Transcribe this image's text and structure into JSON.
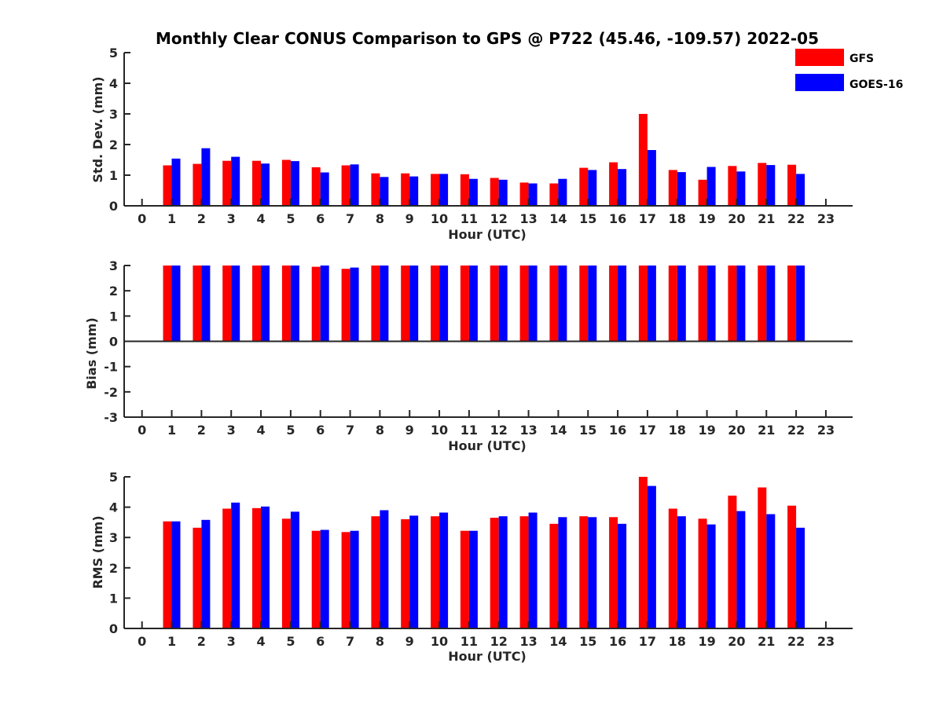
{
  "chart_data": {
    "title": "Monthly Clear CONUS Comparison to GPS @ P722 (45.46, -109.57) 2022-05",
    "legend": {
      "placement": "top-right",
      "entries": [
        {
          "name": "GFS",
          "color": "#ff0000"
        },
        {
          "name": "GOES-16",
          "color": "#0000ff"
        }
      ]
    },
    "panels": [
      {
        "id": "std",
        "type": "bar",
        "xlabel": "Hour (UTC)",
        "ylabel": "Std. Dev. (mm)",
        "xlim": [
          -0.6,
          23.9
        ],
        "ylim": [
          0,
          5
        ],
        "yticks": [
          0,
          1,
          2,
          3,
          4,
          5
        ],
        "xticks": [
          "0",
          "1",
          "2",
          "3",
          "4",
          "5",
          "6",
          "7",
          "8",
          "9",
          "10",
          "11",
          "12",
          "13",
          "14",
          "15",
          "16",
          "17",
          "18",
          "19",
          "20",
          "21",
          "22",
          "23"
        ],
        "hours": [
          1,
          2,
          3,
          4,
          5,
          6,
          7,
          8,
          9,
          10,
          11,
          12,
          13,
          14,
          15,
          16,
          17,
          18,
          19,
          20,
          21,
          22
        ],
        "series": [
          {
            "name": "GFS",
            "color": "#ff0000",
            "values": [
              1.32,
              1.37,
              1.47,
              1.47,
              1.5,
              1.26,
              1.32,
              1.06,
              1.06,
              1.04,
              1.03,
              0.91,
              0.76,
              0.73,
              1.24,
              1.42,
              3.0,
              1.17,
              0.85,
              1.3,
              1.4,
              1.34
            ]
          },
          {
            "name": "GOES-16",
            "color": "#0000ff",
            "values": [
              1.54,
              1.88,
              1.6,
              1.38,
              1.46,
              1.09,
              1.35,
              0.94,
              0.96,
              1.04,
              0.88,
              0.85,
              0.73,
              0.88,
              1.17,
              1.2,
              1.82,
              1.1,
              1.27,
              1.12,
              1.33,
              1.04
            ]
          }
        ]
      },
      {
        "id": "bias",
        "type": "bar",
        "xlabel": "Hour (UTC)",
        "ylabel": "Bias (mm)",
        "xlim": [
          -0.6,
          23.9
        ],
        "ylim": [
          -3,
          3
        ],
        "yticks": [
          -3,
          -2,
          -1,
          0,
          1,
          2,
          3
        ],
        "xticks": [
          "0",
          "1",
          "2",
          "3",
          "4",
          "5",
          "6",
          "7",
          "8",
          "9",
          "10",
          "11",
          "12",
          "13",
          "14",
          "15",
          "16",
          "17",
          "18",
          "19",
          "20",
          "21",
          "22",
          "23"
        ],
        "hours": [
          1,
          2,
          3,
          4,
          5,
          6,
          7,
          8,
          9,
          10,
          11,
          12,
          13,
          14,
          15,
          16,
          17,
          18,
          19,
          20,
          21,
          22
        ],
        "series": [
          {
            "name": "GFS",
            "color": "#ff0000",
            "values": [
              3.0,
              3.0,
              3.0,
              3.0,
              3.0,
              2.95,
              2.87,
              3.0,
              3.0,
              3.0,
              3.0,
              3.0,
              3.0,
              3.0,
              3.0,
              3.0,
              3.0,
              3.0,
              3.0,
              3.0,
              3.0,
              3.0
            ]
          },
          {
            "name": "GOES-16",
            "color": "#0000ff",
            "values": [
              3.0,
              3.0,
              3.0,
              3.0,
              3.0,
              3.0,
              2.92,
              3.0,
              3.0,
              3.0,
              3.0,
              3.0,
              3.0,
              3.0,
              3.0,
              3.0,
              3.0,
              3.0,
              3.0,
              3.0,
              3.0,
              3.0
            ]
          }
        ]
      },
      {
        "id": "rms",
        "type": "bar",
        "xlabel": "Hour (UTC)",
        "ylabel": "RMS (mm)",
        "xlim": [
          -0.6,
          23.9
        ],
        "ylim": [
          0,
          5
        ],
        "yticks": [
          0,
          1,
          2,
          3,
          4,
          5
        ],
        "xticks": [
          "0",
          "1",
          "2",
          "3",
          "4",
          "5",
          "6",
          "7",
          "8",
          "9",
          "10",
          "11",
          "12",
          "13",
          "14",
          "15",
          "16",
          "17",
          "18",
          "19",
          "20",
          "21",
          "22",
          "23"
        ],
        "hours": [
          1,
          2,
          3,
          4,
          5,
          6,
          7,
          8,
          9,
          10,
          11,
          12,
          13,
          14,
          15,
          16,
          17,
          18,
          19,
          20,
          21,
          22
        ],
        "series": [
          {
            "name": "GFS",
            "color": "#ff0000",
            "values": [
              3.53,
              3.32,
              3.95,
              3.97,
              3.62,
              3.22,
              3.18,
              3.7,
              3.6,
              3.7,
              3.22,
              3.65,
              3.7,
              3.45,
              3.7,
              3.67,
              5.0,
              3.95,
              3.62,
              4.38,
              4.65,
              4.05
            ]
          },
          {
            "name": "GOES-16",
            "color": "#0000ff",
            "values": [
              3.53,
              3.58,
              4.15,
              4.02,
              3.85,
              3.25,
              3.22,
              3.9,
              3.72,
              3.82,
              3.22,
              3.7,
              3.82,
              3.67,
              3.67,
              3.45,
              4.7,
              3.7,
              3.43,
              3.87,
              3.77,
              3.32
            ]
          }
        ]
      }
    ]
  }
}
